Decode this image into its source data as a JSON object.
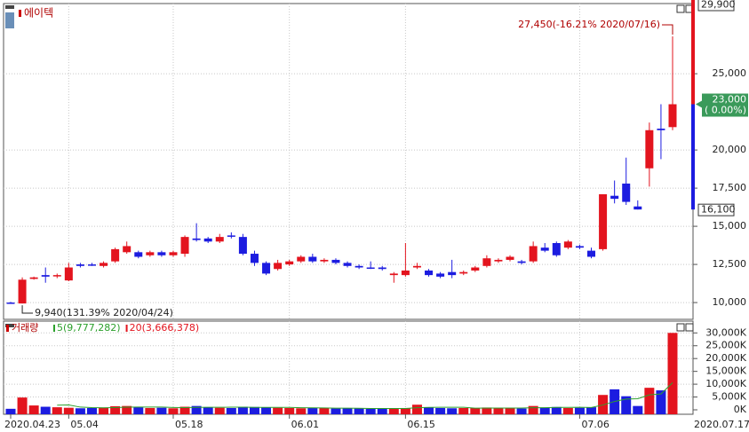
{
  "chart_data": [
    {
      "type": "candlestick",
      "title": "에이텍",
      "open": [
        10000,
        9940,
        11550,
        11800,
        11750,
        11450,
        12500,
        12500,
        12400,
        12700,
        13300,
        13300,
        13100,
        13300,
        13100,
        13200,
        14200,
        14200,
        14000,
        14400,
        14300,
        13200,
        12600,
        12200,
        12500,
        12700,
        13000,
        12700,
        12800,
        12600,
        12400,
        12300,
        12300,
        11800,
        11800,
        12300,
        12100,
        11900,
        12000,
        11900,
        12100,
        12400,
        12700,
        12800,
        12700,
        12700,
        13600,
        13900,
        13600,
        13700,
        13400,
        13500,
        17000,
        17800,
        16300,
        18800,
        21400,
        21500
      ],
      "high": [
        10050,
        11650,
        11700,
        12300,
        11900,
        12600,
        12600,
        12600,
        12700,
        13600,
        14000,
        13400,
        13400,
        13400,
        13400,
        14400,
        15200,
        14300,
        14500,
        14600,
        14500,
        13400,
        12700,
        12800,
        12800,
        13100,
        13200,
        12900,
        12900,
        12700,
        12500,
        12700,
        12400,
        12000,
        13900,
        12600,
        12200,
        12000,
        12800,
        12100,
        12400,
        13100,
        12900,
        13100,
        12800,
        14000,
        13900,
        14000,
        14100,
        13800,
        13600,
        17100,
        18000,
        19500,
        16700,
        21800,
        23000,
        27450
      ],
      "low": [
        9960,
        9940,
        11500,
        11300,
        11600,
        11400,
        12300,
        12400,
        12300,
        12600,
        13200,
        12900,
        13000,
        13000,
        13000,
        13000,
        14000,
        13900,
        13900,
        14200,
        13100,
        12400,
        11800,
        12100,
        12400,
        12600,
        12600,
        12600,
        12500,
        12300,
        12200,
        12200,
        12100,
        11300,
        11700,
        12200,
        11700,
        11600,
        11600,
        11800,
        12000,
        12300,
        12600,
        12700,
        12500,
        12600,
        13300,
        13000,
        13500,
        13500,
        12900,
        13400,
        16500,
        16400,
        16100,
        17600,
        19400,
        21300
      ],
      "close": [
        9970,
        11500,
        11650,
        11700,
        11800,
        12300,
        12400,
        12450,
        12600,
        13500,
        13700,
        13000,
        13300,
        13100,
        13300,
        14300,
        14100,
        14000,
        14300,
        14350,
        13200,
        12600,
        11900,
        12600,
        12700,
        13000,
        12700,
        12800,
        12600,
        12400,
        12300,
        12250,
        12200,
        11900,
        12100,
        12400,
        11800,
        11700,
        11800,
        12000,
        12300,
        12900,
        12800,
        13000,
        12600,
        13700,
        13400,
        13100,
        14000,
        13600,
        13000,
        17100,
        16800,
        16600,
        16100,
        21300,
        21300,
        23000
      ],
      "up_color": "#e3141e",
      "down_color": "#1c1ce0",
      "ylim": [
        8900,
        29600
      ],
      "yticks": [
        {
          "value": 10000,
          "label": "10,000"
        },
        {
          "value": 12500,
          "label": "12,500"
        },
        {
          "value": 15000,
          "label": "15,000"
        },
        {
          "value": 17500,
          "label": "17,500"
        },
        {
          "value": 20000,
          "label": "20,000"
        },
        {
          "value": 25000,
          "label": "25,000"
        }
      ],
      "grid": true,
      "annotations": [
        {
          "text": "27,450(-16.21% 2020/07/16)",
          "value": 27450
        },
        {
          "text": "9,940(131.39% 2020/04/24)",
          "value": 9940
        }
      ],
      "range_high": {
        "value": 29900,
        "label": "29,900"
      },
      "range_low": {
        "value": 16100,
        "label": "16,100"
      },
      "current": {
        "value": 23000,
        "label": "23,000",
        "change": "( 0.00%)"
      }
    },
    {
      "type": "bar",
      "title": "거래량",
      "categories": [
        "2020.04.23",
        null,
        null,
        null,
        null,
        "05.04",
        null,
        null,
        null,
        null,
        null,
        null,
        null,
        null,
        "05.18",
        null,
        null,
        null,
        null,
        null,
        null,
        null,
        null,
        null,
        "06.01",
        null,
        null,
        null,
        null,
        null,
        null,
        null,
        null,
        null,
        "06.15",
        null,
        null,
        null,
        null,
        null,
        null,
        null,
        null,
        null,
        null,
        null,
        null,
        null,
        null,
        "07.06",
        null,
        null,
        null,
        null,
        null,
        null,
        null,
        null
      ],
      "values": [
        400,
        4800,
        1700,
        1200,
        1000,
        800,
        600,
        700,
        900,
        1400,
        1500,
        1000,
        700,
        800,
        600,
        1200,
        1500,
        900,
        800,
        700,
        1200,
        1100,
        900,
        800,
        700,
        600,
        800,
        700,
        500,
        600,
        500,
        400,
        500,
        600,
        700,
        2000,
        900,
        700,
        600,
        700,
        700,
        900,
        600,
        700,
        500,
        1500,
        900,
        1100,
        700,
        800,
        1000,
        5800,
        8000,
        5300,
        1500,
        8600,
        7600,
        30000
      ],
      "end_label": "2020.07.17",
      "ylim": [
        0,
        34600
      ],
      "yticks": [
        {
          "value": 0,
          "label": "0K"
        },
        {
          "value": 5000,
          "label": "5,000K"
        },
        {
          "value": 10000,
          "label": "10,000K"
        },
        {
          "value": 15000,
          "label": "15,000K"
        },
        {
          "value": 20000,
          "label": "20,000K"
        },
        {
          "value": 25000,
          "label": "25,000K"
        },
        {
          "value": 30000,
          "label": "30,000K"
        }
      ],
      "grid": true,
      "series": [
        {
          "name": "5(9,777,282)",
          "color": "#2ca02c",
          "values": [
            null,
            null,
            null,
            null,
            1820,
            1900,
            1060,
            860,
            800,
            880,
            1020,
            1100,
            1100,
            1080,
            920,
            860,
            960,
            1000,
            1000,
            1020,
            1020,
            940,
            940,
            940,
            940,
            820,
            760,
            720,
            660,
            640,
            620,
            540,
            500,
            520,
            540,
            840,
            940,
            980,
            980,
            980,
            660,
            700,
            700,
            700,
            680,
            840,
            840,
            940,
            940,
            1000,
            900,
            1880,
            3260,
            4180,
            4320,
            5840,
            6200,
            10600
          ]
        }
      ],
      "legend_extra": {
        "name": "20(3,666,378)",
        "color": "#e3141e"
      }
    }
  ]
}
